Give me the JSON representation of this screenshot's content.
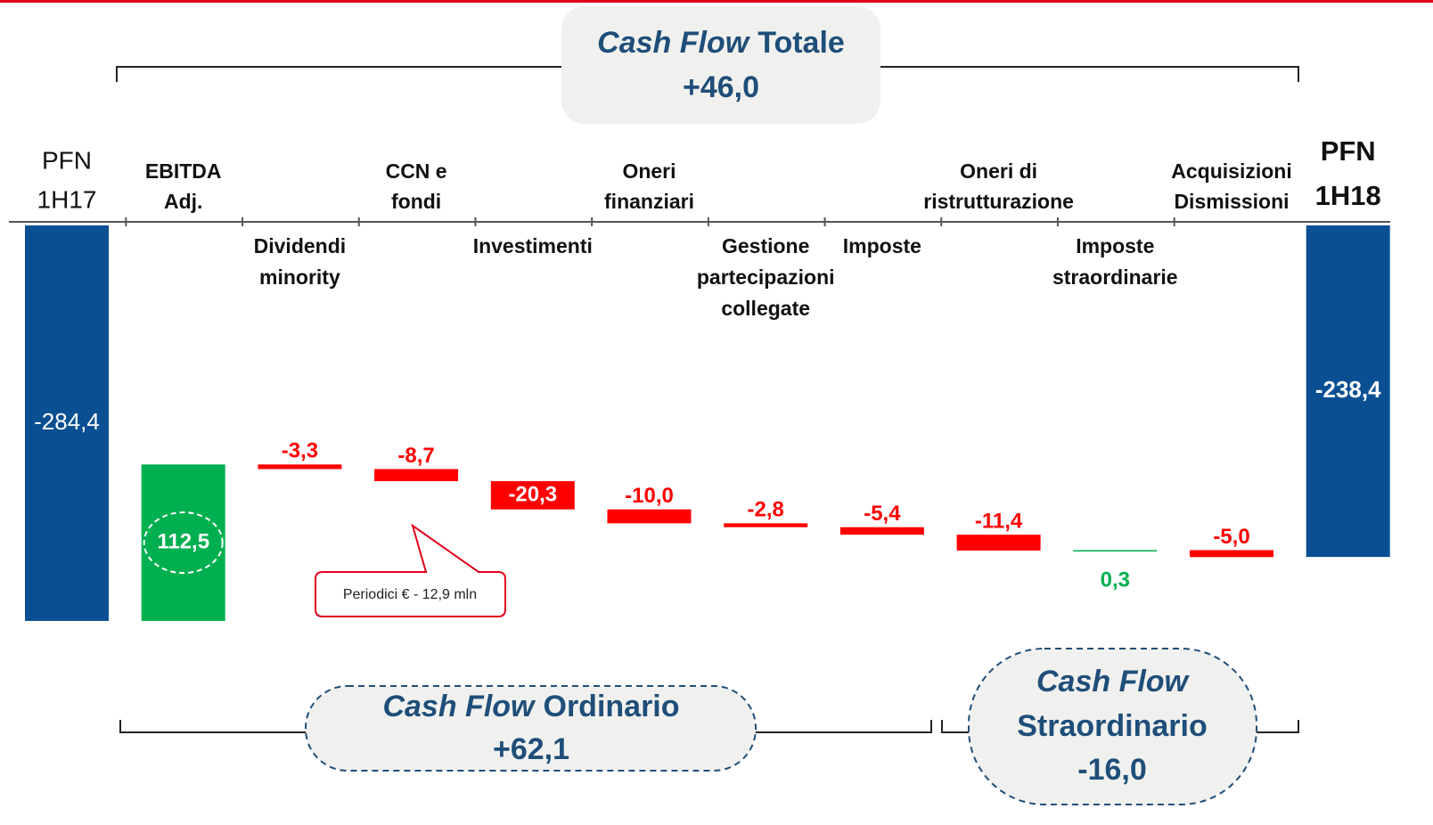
{
  "chart_data": {
    "type": "waterfall",
    "categories": [
      [
        "PFN",
        "1H17"
      ],
      [
        "EBITDA",
        "Adj."
      ],
      [
        "Dividendi",
        "minority"
      ],
      [
        "CCN e",
        "fondi"
      ],
      [
        "Investimenti"
      ],
      [
        "Oneri",
        "finanziari"
      ],
      [
        "Gestione",
        "partecipazioni",
        "collegate"
      ],
      [
        "Imposte"
      ],
      [
        "Oneri di",
        "ristrutturazione"
      ],
      [
        "Imposte",
        "straordinarie"
      ],
      [
        "Acquisizioni",
        "Dismissioni"
      ],
      [
        "PFN",
        "1H18"
      ]
    ],
    "values": [
      -284.4,
      112.5,
      -3.3,
      -8.7,
      -20.3,
      -10.0,
      -2.8,
      -5.4,
      -11.4,
      0.3,
      -5.0,
      -238.4
    ],
    "value_labels": [
      "-284,4",
      "112,5",
      "-3,3",
      "-8,7",
      "-20,3",
      "-10,0",
      "-2,8",
      "-5,4",
      "-11,4",
      "0,3",
      "-5,0",
      "-238,4"
    ],
    "totals": [
      true,
      false,
      false,
      false,
      false,
      false,
      false,
      false,
      false,
      false,
      false,
      true
    ],
    "total_color": "#0b4f93",
    "increase_color": "#00b050",
    "decrease_color": "#ff0000",
    "annotations": [
      {
        "emphasis": "Cash Flow",
        "text": "Totale",
        "value_label": "+46,0"
      },
      {
        "emphasis": "Cash Flow",
        "text": "Ordinario",
        "value_label": "+62,1"
      },
      {
        "emphasis": "Cash Flow",
        "text": "Straordinario",
        "value_label": "-16,0"
      }
    ],
    "callout": "Periodici € - 12,9 mln"
  }
}
